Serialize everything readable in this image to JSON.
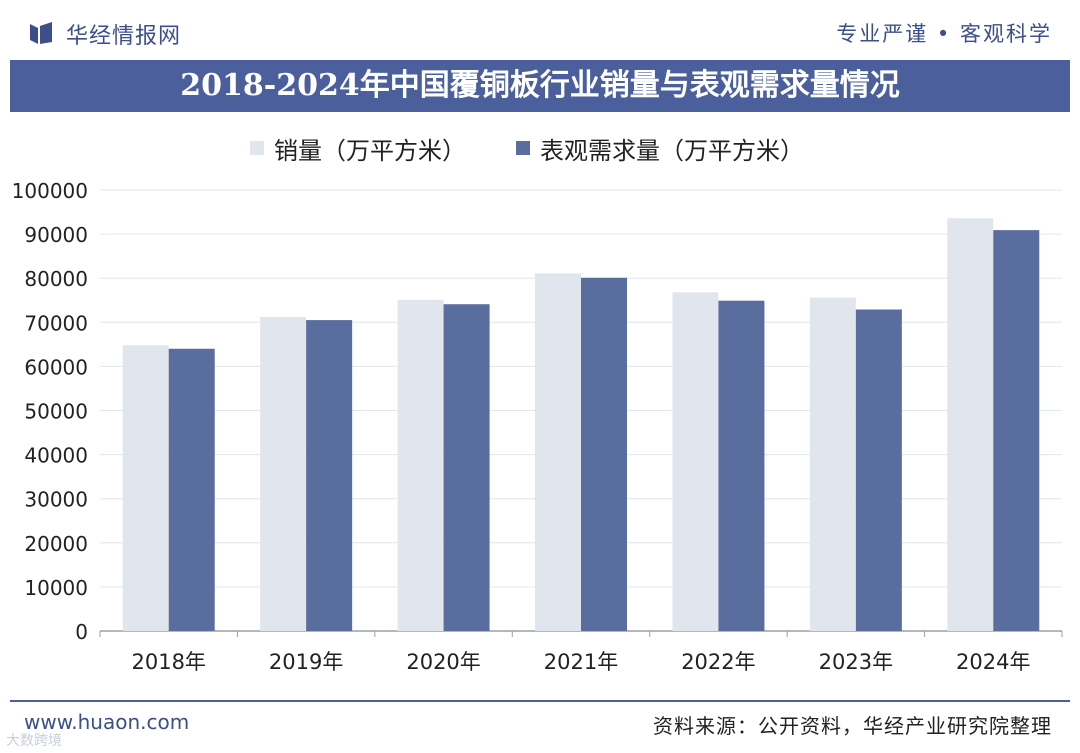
{
  "header": {
    "brand": "华经情报网",
    "slogan": "专业严谨 • 客观科学"
  },
  "colors": {
    "sales": "#e1e6ee",
    "demand": "#5a6d9f",
    "title_bg": "#4a5f9b"
  },
  "chart_data": {
    "type": "bar",
    "title": "2018-2024年中国覆铜板行业销量与表观需求量情况",
    "categories": [
      "2018年",
      "2019年",
      "2020年",
      "2021年",
      "2022年",
      "2023年",
      "2024年"
    ],
    "series": [
      {
        "name": "销量（万平方米）",
        "values": [
          64800,
          71200,
          75100,
          81100,
          76800,
          75600,
          93600
        ]
      },
      {
        "name": "表观需求量（万平方米）",
        "values": [
          64000,
          70500,
          74100,
          80100,
          74900,
          72900,
          90900
        ]
      }
    ],
    "yticks": [
      0,
      10000,
      20000,
      30000,
      40000,
      50000,
      60000,
      70000,
      80000,
      90000,
      100000
    ],
    "ylim": [
      0,
      100000
    ],
    "xlabel": "",
    "ylabel": "",
    "grid": true,
    "legend": "top-left"
  },
  "footer": {
    "site": "www.huaon.com",
    "source": "资料来源：公开资料，华经产业研究院整理",
    "mark": "大数跨境"
  }
}
